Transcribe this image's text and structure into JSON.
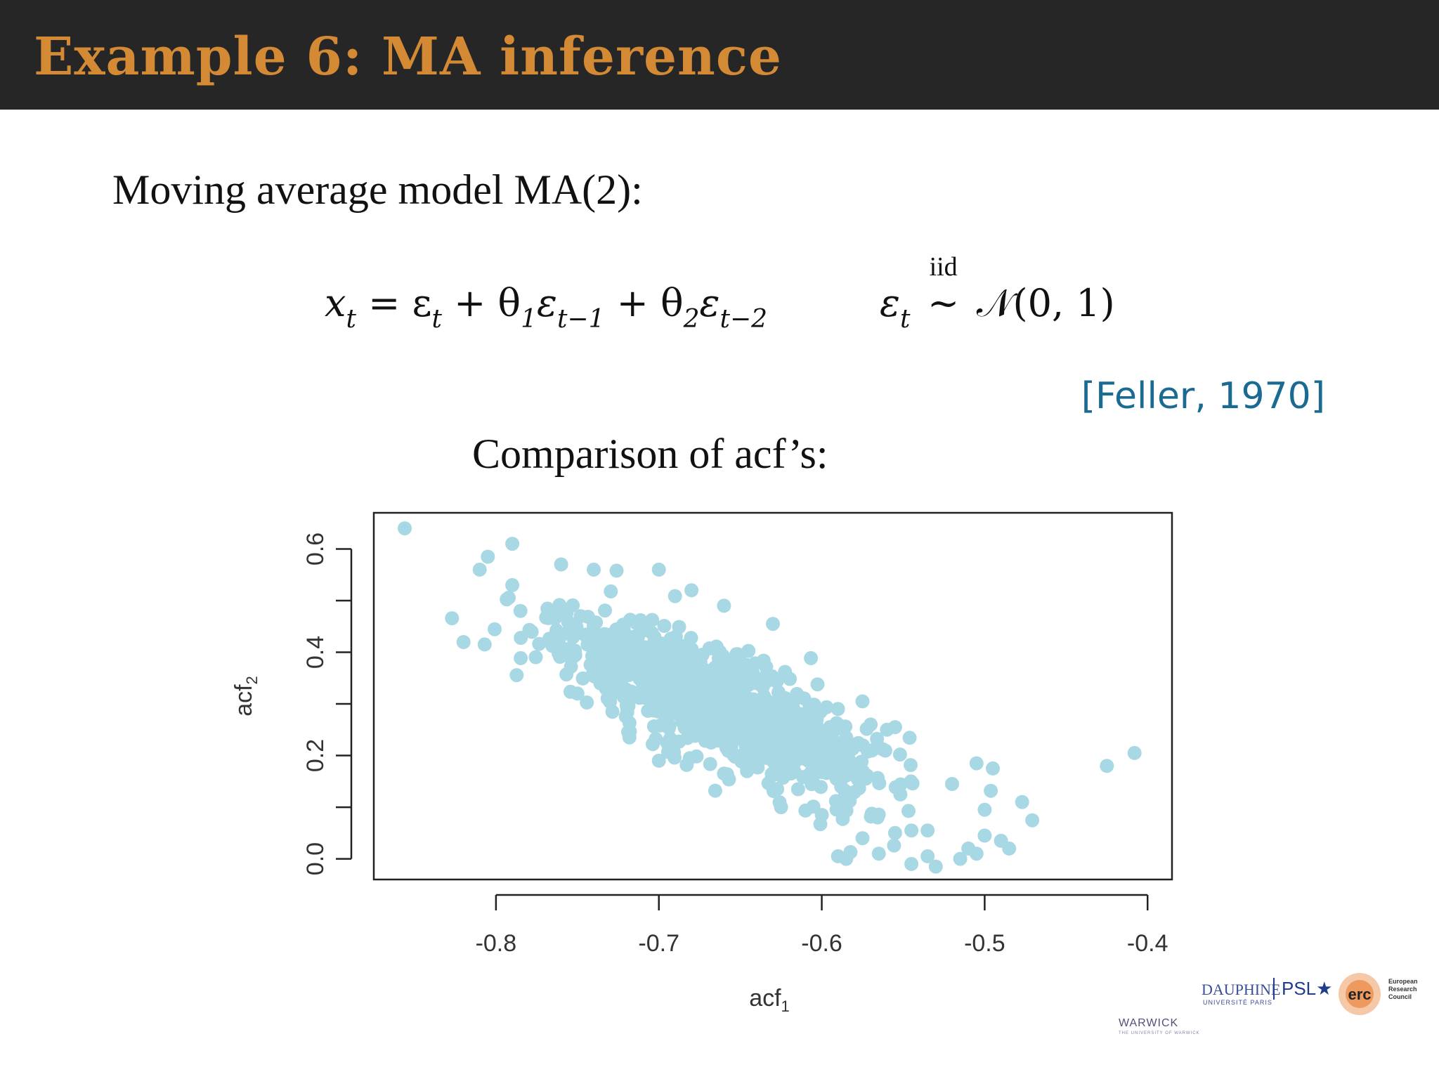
{
  "slide": {
    "title": "Example 6:  MA inference",
    "subtitle": "Moving average model MA(2):",
    "equation": {
      "lhs": "x",
      "lhs_sub": "t",
      "eq": " = ε",
      "eps_sub": "t",
      "plus1": " + θ",
      "theta1_sub": "1",
      "eps1": "ε",
      "eps1_sub": "t−1",
      "plus2": " + θ",
      "theta2_sub": "2",
      "eps2": "ε",
      "eps2_sub": "t−2",
      "noise": "ε",
      "noise_sub": "t",
      "iid": "iid",
      "tilde": "~",
      "dist": "𝒩(0, 1)"
    },
    "citation": "[Feller, 1970]",
    "caption": "Comparison of acf’s:"
  },
  "logos": {
    "dauphine": "DAUPHINE",
    "dauphine_sub": "UNIVERSITÉ PARIS",
    "psl": "PSL★",
    "erc": "erc",
    "erc_text": [
      "European",
      "Research",
      "Council"
    ],
    "warwick": "WARWICK",
    "warwick_sub": "THE UNIVERSITY OF WARWICK"
  },
  "colors": {
    "title_bar": "#262626",
    "title_text": "#d48a34",
    "citation": "#1a6a92",
    "points": "#a8d8e4"
  },
  "chart_data": {
    "type": "scatter",
    "title": "",
    "xlabel": "acf",
    "xlabel_sub": "1",
    "ylabel": "acf",
    "ylabel_sub": "2",
    "xlim": [
      -0.875,
      -0.385
    ],
    "ylim": [
      -0.04,
      0.67
    ],
    "x_ticks": [
      -0.8,
      -0.7,
      -0.6,
      -0.5,
      -0.4
    ],
    "x_tick_labels": [
      "-0.8",
      "-0.7",
      "-0.6",
      "-0.5",
      "-0.4"
    ],
    "y_ticks": [
      0.0,
      0.1,
      0.2,
      0.3,
      0.4,
      0.5,
      0.6
    ],
    "y_tick_labels": [
      "0.0",
      "",
      "0.2",
      "",
      "0.4",
      "",
      "0.6"
    ],
    "grid": false,
    "point_color": "#a8d8e4",
    "cloud": {
      "n": 1000,
      "center": [
        -0.665,
        0.3
      ],
      "x_sd": 0.048,
      "slope": -1.38,
      "y_resid_sd": 0.052
    },
    "points": [
      [
        -0.856,
        0.64
      ],
      [
        -0.79,
        0.61
      ],
      [
        -0.81,
        0.56
      ],
      [
        -0.805,
        0.585
      ],
      [
        -0.76,
        0.57
      ],
      [
        -0.74,
        0.56
      ],
      [
        -0.7,
        0.56
      ],
      [
        -0.68,
        0.52
      ],
      [
        -0.66,
        0.49
      ],
      [
        -0.63,
        0.455
      ],
      [
        -0.79,
        0.53
      ],
      [
        -0.785,
        0.48
      ],
      [
        -0.75,
        0.32
      ],
      [
        -0.72,
        0.355
      ],
      [
        -0.73,
        0.33
      ],
      [
        -0.7,
        0.19
      ],
      [
        -0.66,
        0.165
      ],
      [
        -0.625,
        0.1
      ],
      [
        -0.6,
        0.085
      ],
      [
        -0.585,
        0.0
      ],
      [
        -0.59,
        0.005
      ],
      [
        -0.575,
        0.04
      ],
      [
        -0.565,
        0.01
      ],
      [
        -0.555,
        0.05
      ],
      [
        -0.545,
        -0.01
      ],
      [
        -0.535,
        0.005
      ],
      [
        -0.53,
        -0.015
      ],
      [
        -0.545,
        0.055
      ],
      [
        -0.535,
        0.055
      ],
      [
        -0.52,
        0.145
      ],
      [
        -0.505,
        0.185
      ],
      [
        -0.495,
        0.175
      ],
      [
        -0.5,
        0.095
      ],
      [
        -0.51,
        0.02
      ],
      [
        -0.5,
        0.045
      ],
      [
        -0.49,
        0.035
      ],
      [
        -0.485,
        0.02
      ],
      [
        -0.505,
        0.01
      ],
      [
        -0.515,
        0.0
      ],
      [
        -0.477,
        0.11
      ],
      [
        -0.425,
        0.18
      ],
      [
        -0.408,
        0.205
      ],
      [
        -0.56,
        0.25
      ],
      [
        -0.555,
        0.255
      ],
      [
        -0.57,
        0.26
      ],
      [
        -0.575,
        0.305
      ],
      [
        -0.585,
        0.235
      ]
    ]
  }
}
